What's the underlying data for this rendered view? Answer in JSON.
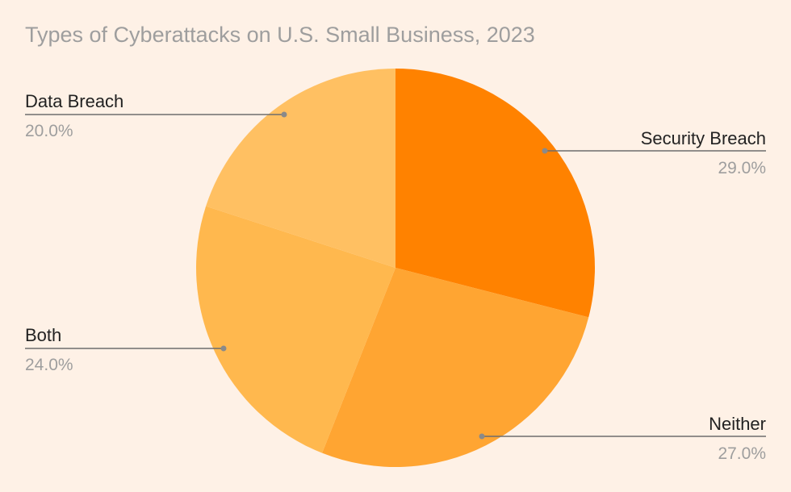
{
  "chart_data": {
    "type": "pie",
    "title": "Types of Cyberattacks on U.S. Small Business, 2023",
    "slices": [
      {
        "label": "Security Breach",
        "value": 29.0,
        "display": "29.0%",
        "color": "#ff8200"
      },
      {
        "label": "Neither",
        "value": 27.0,
        "display": "27.0%",
        "color": "#ffa532"
      },
      {
        "label": "Both",
        "value": 24.0,
        "display": "24.0%",
        "color": "#ffb84e"
      },
      {
        "label": "Data Breach",
        "value": 20.0,
        "display": "20.0%",
        "color": "#ffc062"
      }
    ],
    "start_angle": "12 o'clock",
    "direction": "clockwise",
    "legend": "callout labels"
  },
  "colors": {
    "background": "#fef1e6",
    "title": "#9e9e9e",
    "label_text": "#222222",
    "percent_text": "#9e9e9e",
    "leader_line": "#6d6d6d"
  }
}
